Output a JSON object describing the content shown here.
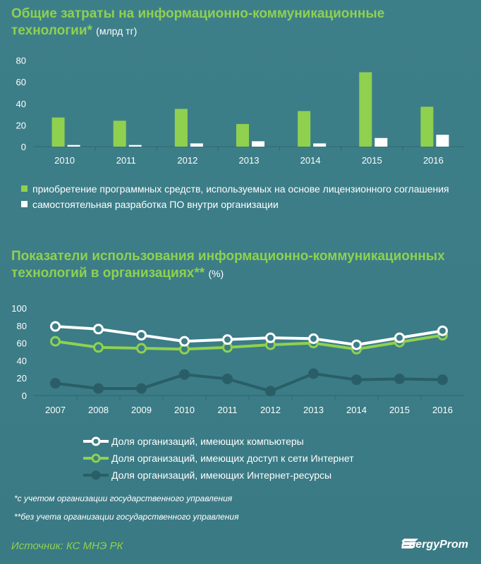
{
  "chart1_title": {
    "text": "Общие затраты на информационно-коммуникационные технологии*",
    "unit": "(млрд тг)"
  },
  "chart2_title": {
    "text": "Показатели использования информационно-коммуникационных технологий в организациях**",
    "unit": "(%)"
  },
  "colors": {
    "green": "#8fd14f",
    "white": "#ffffff",
    "dark": "#2a5e66",
    "axis": "#2f6670"
  },
  "chart_data": [
    {
      "type": "bar",
      "title": "Общие затраты на информационно-коммуникационные технологии*",
      "ylabel": "млрд тг",
      "categories": [
        "2010",
        "2011",
        "2012",
        "2013",
        "2014",
        "2015",
        "2016"
      ],
      "yticks": [
        "0",
        "20",
        "40",
        "60",
        "80"
      ],
      "ylim": [
        0,
        85
      ],
      "series": [
        {
          "name": "приобретение программных средств, используемых на основе лицензионного соглашения",
          "color": "#8fd14f",
          "values": [
            27,
            24,
            35,
            21,
            33,
            69,
            37
          ]
        },
        {
          "name": "самостоятельная разработка ПО внутри организации",
          "color": "#ffffff",
          "values": [
            1.5,
            1.5,
            3,
            5,
            3,
            8,
            11
          ]
        }
      ]
    },
    {
      "type": "line",
      "title": "Показатели использования информационно-коммуникационных технологий в организациях**",
      "ylabel": "%",
      "categories": [
        "2007",
        "2008",
        "2009",
        "2010",
        "2011",
        "2012",
        "2013",
        "2014",
        "2015",
        "2016"
      ],
      "yticks": [
        "0",
        "20",
        "40",
        "60",
        "80",
        "100"
      ],
      "ylim": [
        0,
        100
      ],
      "series": [
        {
          "name": "Доля организаций, имеющих компьютеры",
          "color": "#ffffff",
          "values": [
            79,
            76,
            69,
            62,
            64,
            66,
            65,
            58,
            66,
            74
          ]
        },
        {
          "name": "Доля организаций, имеющих доступ к сети Интернет",
          "color": "#8fd14f",
          "values": [
            62,
            55,
            54,
            53,
            55,
            58,
            60,
            53,
            61,
            69
          ]
        },
        {
          "name": "Доля организаций, имеющих Интернет-ресурсы",
          "color": "#2a5e66",
          "values": [
            14,
            8,
            8,
            24,
            19,
            5,
            25,
            18,
            19,
            18
          ]
        }
      ]
    }
  ],
  "footnotes": [
    "*с учетом организации государственного управления",
    "**без учета организации государственного управления"
  ],
  "source": "Источник: КС МНЭ РК",
  "brand": "EnergyProm"
}
